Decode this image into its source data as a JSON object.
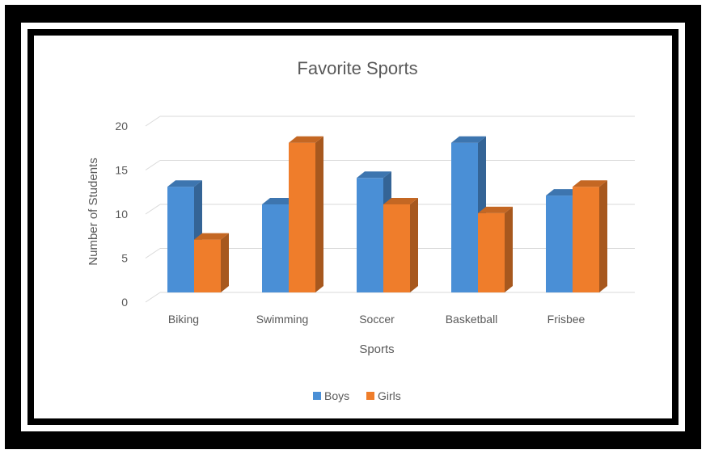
{
  "chart_data": {
    "type": "bar",
    "title": "Favorite Sports",
    "xlabel": "Sports",
    "ylabel": "Number of Students",
    "categories": [
      "Biking",
      "Swimming",
      "Soccer",
      "Basketball",
      "Frisbee"
    ],
    "series": [
      {
        "name": "Boys",
        "values": [
          12,
          10,
          13,
          17,
          11
        ],
        "color": "#4a8fd6"
      },
      {
        "name": "Girls",
        "values": [
          6,
          17,
          10,
          9,
          12
        ],
        "color": "#ef7d2b"
      }
    ],
    "ylim": [
      0,
      20
    ],
    "yticks": [
      0,
      5,
      10,
      15,
      20
    ],
    "grid": true,
    "legend_position": "bottom",
    "style": "3d-column"
  }
}
